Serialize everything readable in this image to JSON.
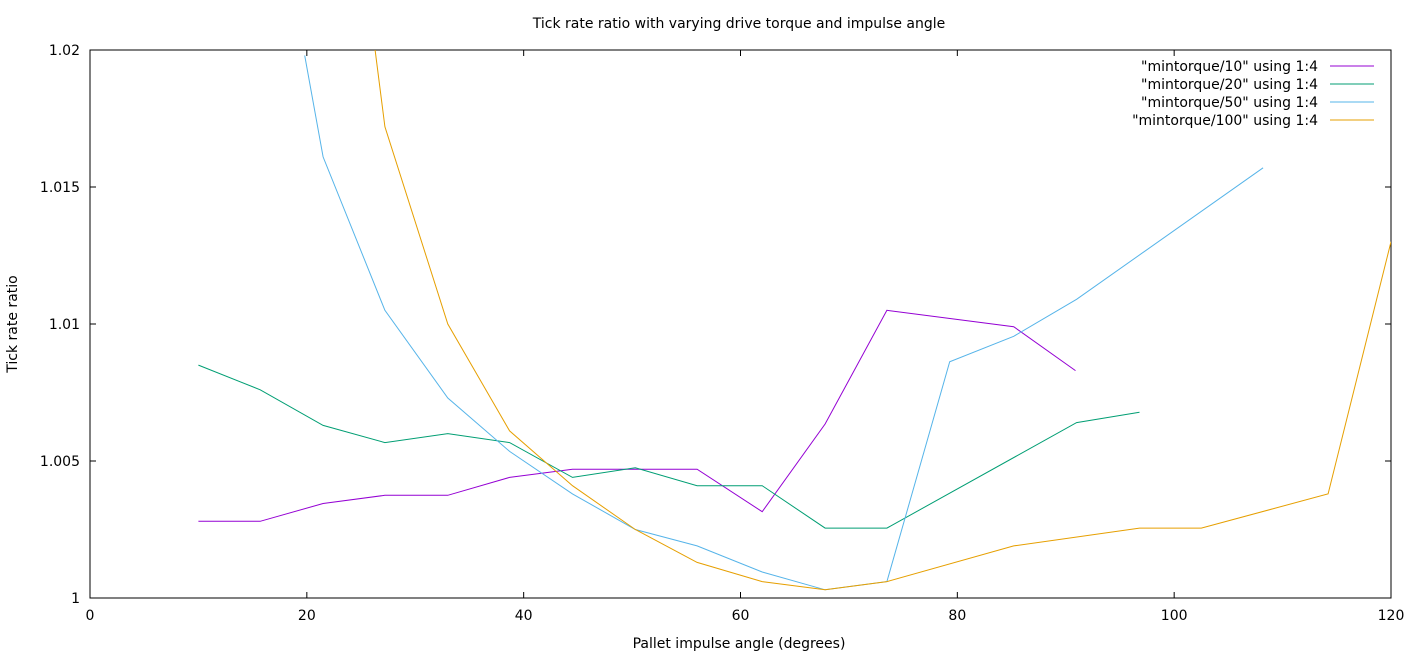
{
  "chart_data": {
    "type": "line",
    "title": "Tick rate ratio with varying drive torque and impulse angle",
    "xlabel": "Pallet impulse angle (degrees)",
    "ylabel": "Tick rate ratio",
    "xlim": [
      0,
      120
    ],
    "ylim": [
      1,
      1.02
    ],
    "xticks": [
      0,
      20,
      40,
      60,
      80,
      100,
      120
    ],
    "yticks": [
      1,
      1.005,
      1.01,
      1.015,
      1.02
    ],
    "xtick_labels": [
      "0",
      "20",
      "40",
      "60",
      "80",
      "100",
      "120"
    ],
    "ytick_labels": [
      "1",
      "1.005",
      "1.01",
      "1.015",
      "1.02"
    ],
    "grid": false,
    "legend_position": "top-right",
    "series": [
      {
        "name": "\"mintorque/10\" using 1:4",
        "color": "#9400d3",
        "x": [
          10,
          15.7,
          21.5,
          27.2,
          33,
          38.7,
          44.5,
          50.3,
          56,
          62,
          67.8,
          73.5,
          85.2,
          90.9
        ],
        "y": [
          1.0028,
          1.0028,
          1.00345,
          1.00375,
          1.00375,
          1.0044,
          1.0047,
          1.0047,
          1.0047,
          1.00315,
          1.00635,
          1.0105,
          1.0099,
          1.0083
        ]
      },
      {
        "name": "\"mintorque/20\" using 1:4",
        "color": "#009e73",
        "x": [
          10,
          15.7,
          21.5,
          27.2,
          33,
          38.7,
          44.5,
          50.3,
          56,
          62,
          67.8,
          73.5,
          91,
          96.8
        ],
        "y": [
          1.0085,
          1.0076,
          1.0063,
          1.00567,
          1.006,
          1.00567,
          1.0044,
          1.00475,
          1.0041,
          1.0041,
          1.00255,
          1.00255,
          1.0064,
          1.00678
        ]
      },
      {
        "name": "\"mintorque/50\" using 1:4",
        "color": "#56b4e9",
        "x": [
          19.8,
          21.5,
          27.2,
          33,
          38.7,
          44.5,
          50.3,
          56,
          62,
          67.8,
          73.5,
          79.3,
          85.2,
          91,
          108.2
        ],
        "y": [
          1.0198,
          1.0161,
          1.0105,
          1.0073,
          1.00535,
          1.0038,
          1.0025,
          1.0019,
          1.00095,
          1.0003,
          1.0006,
          1.00862,
          1.00955,
          1.0109,
          1.0157
        ]
      },
      {
        "name": "\"mintorque/100\" using 1:4",
        "color": "#e69f00",
        "x": [
          26.3,
          27.2,
          33,
          38.7,
          44.5,
          50.3,
          56,
          62,
          67.8,
          73.5,
          85.2,
          96.8,
          102.5,
          114.2,
          120
        ],
        "y": [
          1.02,
          1.0172,
          1.01,
          1.0061,
          1.0041,
          1.0025,
          1.0013,
          1.0006,
          1.0003,
          1.0006,
          1.0019,
          1.00255,
          1.00255,
          1.0038,
          1.013
        ]
      }
    ]
  }
}
